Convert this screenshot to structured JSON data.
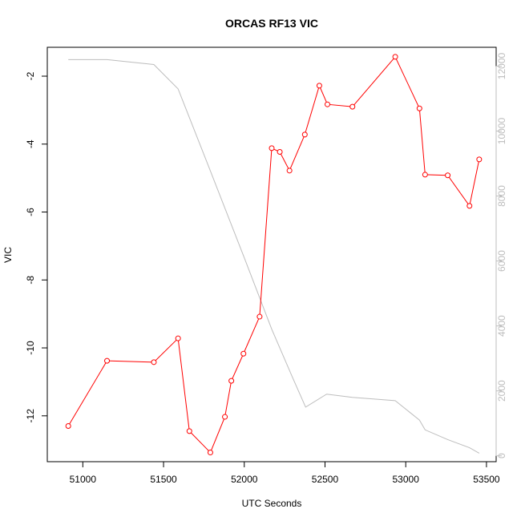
{
  "chart_data": {
    "type": "line",
    "title": "ORCAS RF13 VIC",
    "xlabel": "UTC Seconds",
    "ylabel": "VIC",
    "xlim": [
      50780,
      53560
    ],
    "ylim": [
      -13.35,
      -1.15
    ],
    "y2lim": [
      -180,
      12580
    ],
    "x_ticks": [
      51000,
      51500,
      52000,
      52500,
      53000,
      53500
    ],
    "y_ticks": [
      -2,
      -4,
      -6,
      -8,
      -10,
      -12
    ],
    "y2_ticks": [
      0,
      2000,
      4000,
      6000,
      8000,
      10000,
      12000
    ],
    "legend": "none",
    "grid": false,
    "series": [
      {
        "role": "primary",
        "color": "#ff0000",
        "marker": "circle",
        "x": [
          50910,
          51150,
          51440,
          51590,
          51660,
          51790,
          51880,
          51920,
          51995,
          52095,
          52170,
          52220,
          52280,
          52375,
          52465,
          52515,
          52670,
          52935,
          53085,
          53120,
          53260,
          53395,
          53455
        ],
        "y": [
          -12.3,
          -10.38,
          -10.42,
          -9.72,
          -12.45,
          -13.08,
          -12.03,
          -10.97,
          -10.17,
          -9.08,
          -4.12,
          -4.23,
          -4.78,
          -3.72,
          -2.28,
          -2.83,
          -2.9,
          -1.43,
          -2.95,
          -4.9,
          -4.92,
          -5.82,
          -4.45
        ]
      },
      {
        "role": "secondary",
        "color": "#bdbdbd",
        "marker": "none",
        "x": [
          50910,
          51150,
          51440,
          51590,
          51780,
          52000,
          52170,
          52300,
          52380,
          52510,
          52670,
          52935,
          53085,
          53120,
          53260,
          53395,
          53455
        ],
        "y2": [
          12200,
          12200,
          12050,
          11300,
          8900,
          6100,
          3900,
          2400,
          1500,
          1900,
          1800,
          1700,
          1100,
          800,
          500,
          250,
          80
        ]
      }
    ]
  }
}
